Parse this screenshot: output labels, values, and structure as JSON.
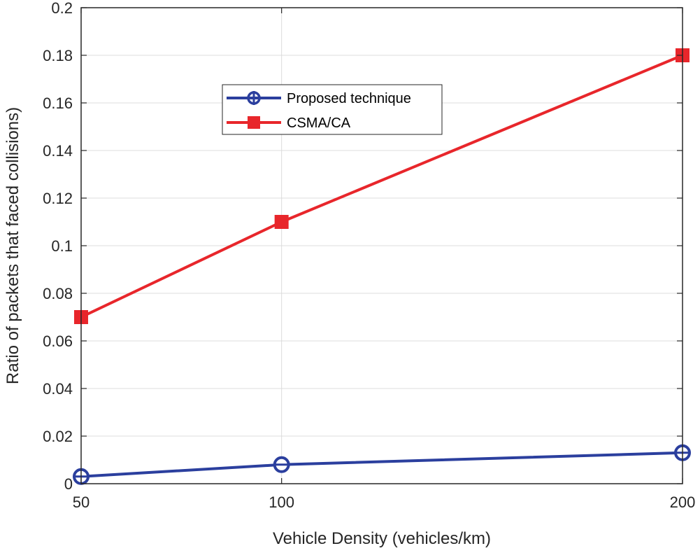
{
  "chart_data": {
    "type": "line",
    "xlabel": "Vehicle Density (vehicles/km)",
    "ylabel": "Ratio of packets that faced collisions)",
    "x": [
      50,
      100,
      200
    ],
    "x_tick_labels": [
      "50",
      "100",
      "200"
    ],
    "xlim": [
      50,
      200
    ],
    "ylim": [
      0,
      0.2
    ],
    "y_ticks": [
      0,
      0.02,
      0.04,
      0.06,
      0.08,
      0.1,
      0.12,
      0.14,
      0.16,
      0.18,
      0.2
    ],
    "y_tick_labels": [
      "0",
      "0.02",
      "0.04",
      "0.06",
      "0.08",
      "0.1",
      "0.12",
      "0.14",
      "0.16",
      "0.18",
      "0.2"
    ],
    "grid": true,
    "legend_position": "upper-center",
    "series": [
      {
        "name": "Proposed technique",
        "values": [
          0.003,
          0.008,
          0.013
        ],
        "color": "#2b3f9e",
        "marker": "circle"
      },
      {
        "name": "CSMA/CA",
        "values": [
          0.07,
          0.11,
          0.18
        ],
        "color": "#e8262b",
        "marker": "square"
      }
    ]
  }
}
